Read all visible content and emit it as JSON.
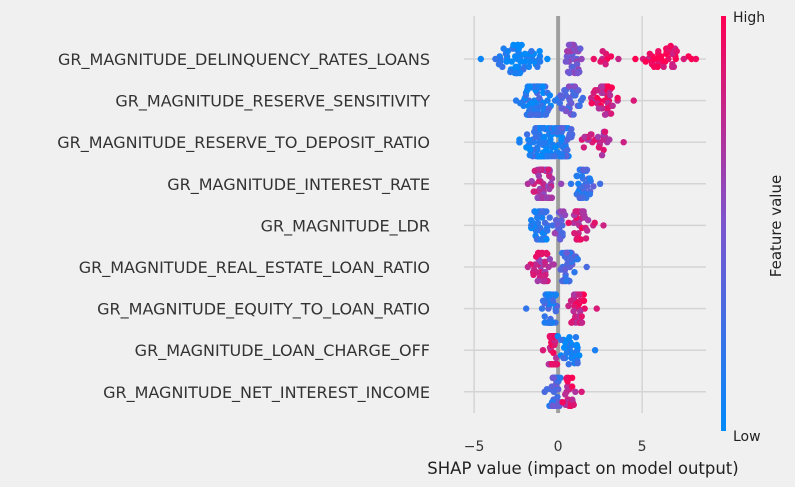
{
  "chart_data": {
    "type": "scatter",
    "subtype": "shap-beeswarm",
    "title": "",
    "xlabel": "SHAP value (impact on model output)",
    "ylabel": "",
    "xlim": [
      -5.6,
      8.8
    ],
    "x_ticks": [
      -5,
      0,
      5
    ],
    "x_tick_labels": [
      "−5",
      "0",
      "5"
    ],
    "grid": true,
    "vertical_zero_line": true,
    "colorbar": {
      "label": "Feature value",
      "high_label": "High",
      "low_label": "Low",
      "low_color": "#008afb",
      "mid_color": "#7c54ce",
      "high_color": "#ff0052"
    },
    "features": [
      {
        "name": "GR_MAGNITUDE_DELINQUENCY_RATES_LOANS",
        "x_min": -4.6,
        "x_max": 8.2,
        "groups": [
          {
            "center": -2.2,
            "spread": 1.4,
            "n": 60,
            "color": 0.05
          },
          {
            "center": 0.9,
            "spread": 0.6,
            "n": 35,
            "color": 0.5
          },
          {
            "center": 2.9,
            "spread": 0.8,
            "n": 10,
            "color": 0.9
          },
          {
            "center": 6.2,
            "spread": 1.2,
            "n": 38,
            "color": 0.95
          }
        ]
      },
      {
        "name": "GR_MAGNITUDE_RESERVE_SENSITIVITY",
        "x_min": -2.5,
        "x_max": 4.5,
        "groups": [
          {
            "center": -1.3,
            "spread": 0.8,
            "n": 95,
            "color": 0.15
          },
          {
            "center": 0.8,
            "spread": 0.6,
            "n": 35,
            "color": 0.4
          },
          {
            "center": 2.9,
            "spread": 0.7,
            "n": 40,
            "color": 0.85
          }
        ]
      },
      {
        "name": "GR_MAGNITUDE_RESERVE_TO_DEPOSIT_RATIO",
        "x_min": -2.3,
        "x_max": 3.9,
        "groups": [
          {
            "center": -0.8,
            "spread": 0.9,
            "n": 85,
            "color": 0.1
          },
          {
            "center": 0.3,
            "spread": 0.5,
            "n": 40,
            "color": 0.2
          },
          {
            "center": 2.2,
            "spread": 0.9,
            "n": 25,
            "color": 0.8
          }
        ]
      },
      {
        "name": "GR_MAGNITUDE_INTEREST_RATE",
        "x_min": -1.8,
        "x_max": 2.5,
        "groups": [
          {
            "center": -0.9,
            "spread": 0.6,
            "n": 75,
            "color": 0.7
          },
          {
            "center": 1.4,
            "spread": 0.6,
            "n": 40,
            "color": 0.25
          }
        ]
      },
      {
        "name": "GR_MAGNITUDE_LDR",
        "x_min": -1.6,
        "x_max": 2.7,
        "groups": [
          {
            "center": -1.0,
            "spread": 0.5,
            "n": 50,
            "color": 0.15
          },
          {
            "center": 0.1,
            "spread": 0.3,
            "n": 20,
            "color": 0.45
          },
          {
            "center": 1.3,
            "spread": 0.6,
            "n": 40,
            "color": 0.8
          }
        ]
      },
      {
        "name": "GR_MAGNITUDE_REAL_ESTATE_LOAN_RATIO",
        "x_min": -1.8,
        "x_max": 1.7,
        "groups": [
          {
            "center": -1.0,
            "spread": 0.5,
            "n": 40,
            "color": 0.75
          },
          {
            "center": 0.5,
            "spread": 0.5,
            "n": 50,
            "color": 0.3
          }
        ]
      },
      {
        "name": "GR_MAGNITUDE_EQUITY_TO_LOAN_RATIO",
        "x_min": -1.9,
        "x_max": 2.3,
        "groups": [
          {
            "center": -0.5,
            "spread": 0.4,
            "n": 55,
            "color": 0.2
          },
          {
            "center": 1.2,
            "spread": 0.5,
            "n": 40,
            "color": 0.85
          }
        ]
      },
      {
        "name": "GR_MAGNITUDE_LOAN_CHARGE_OFF",
        "x_min": -0.9,
        "x_max": 2.2,
        "groups": [
          {
            "center": -0.3,
            "spread": 0.25,
            "n": 60,
            "color": 0.85
          },
          {
            "center": 0.8,
            "spread": 0.6,
            "n": 30,
            "color": 0.1
          }
        ]
      },
      {
        "name": "GR_MAGNITUDE_NET_INTEREST_INCOME",
        "x_min": -0.8,
        "x_max": 1.4,
        "groups": [
          {
            "center": -0.2,
            "spread": 0.3,
            "n": 55,
            "color": 0.3
          },
          {
            "center": 0.6,
            "spread": 0.4,
            "n": 25,
            "color": 0.85
          }
        ]
      }
    ]
  }
}
